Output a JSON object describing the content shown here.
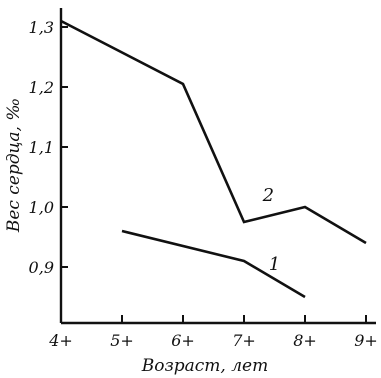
{
  "chart_data": {
    "type": "line",
    "xlabel": "Возраст, лет",
    "ylabel": "Вес сердца, ‰",
    "x_ticks": [
      4,
      5,
      6,
      7,
      8,
      9
    ],
    "x_tick_labels": [
      "4+",
      "5+",
      "6+",
      "7+",
      "8+",
      "9+"
    ],
    "y_ticks": [
      0.9,
      1.0,
      1.1,
      1.2,
      1.3
    ],
    "y_tick_labels": [
      "0,9",
      "1,0",
      "1,1",
      "1,2",
      "1,3"
    ],
    "xlim": [
      4,
      9.15
    ],
    "ylim": [
      0.75,
      1.33
    ],
    "grid": false,
    "series": [
      {
        "name": "1",
        "x": [
          5,
          7,
          8
        ],
        "y": [
          0.96,
          0.91,
          0.85
        ]
      },
      {
        "name": "2",
        "x": [
          4,
          6,
          7,
          8,
          9
        ],
        "y": [
          1.31,
          1.205,
          0.975,
          1.0,
          0.94
        ]
      }
    ],
    "series_label_anchor": [
      {
        "x": 7.5,
        "y": 0.895
      },
      {
        "x": 7.4,
        "y": 1.01
      }
    ]
  }
}
